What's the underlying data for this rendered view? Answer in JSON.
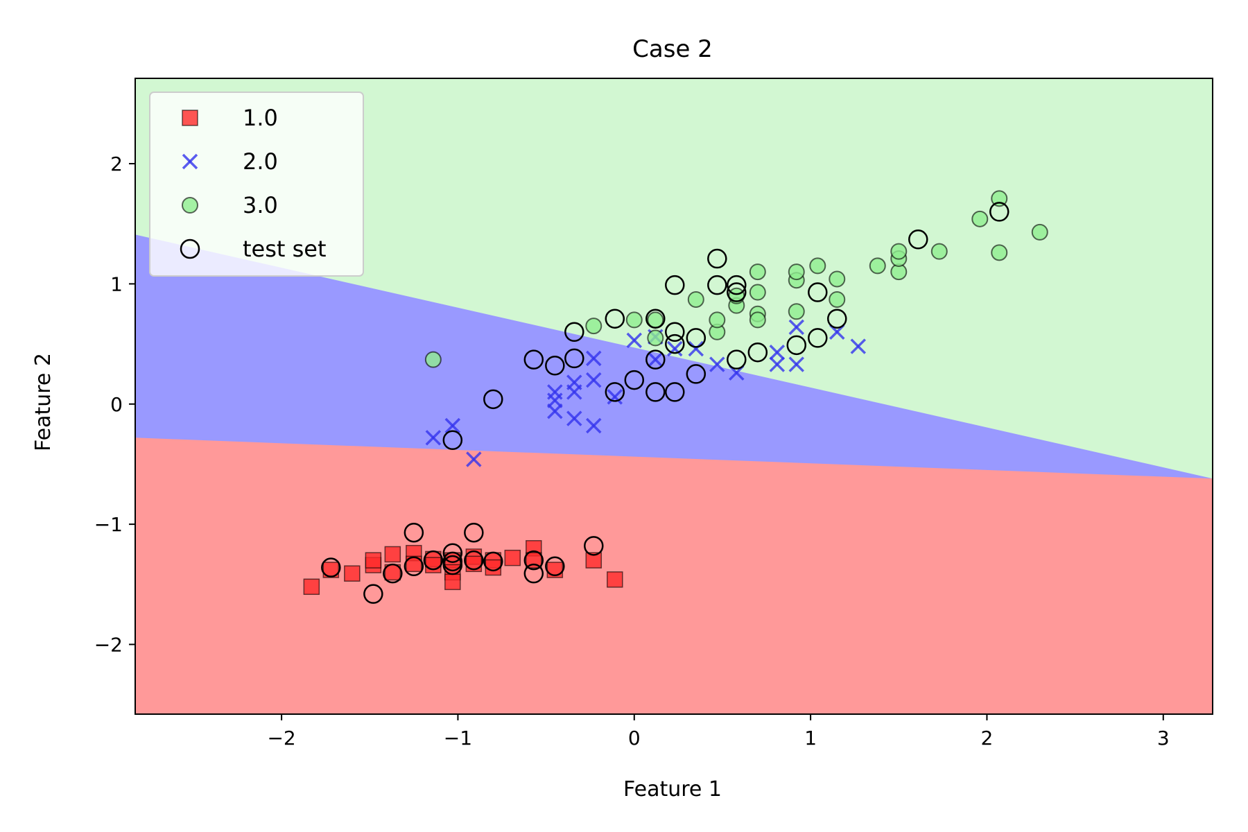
{
  "chart_data": {
    "type": "scatter",
    "title": "Case 2",
    "xlabel": "Feature 1",
    "ylabel": "Feature 2",
    "xlim": [
      -2.83,
      3.28
    ],
    "ylim": [
      -2.58,
      2.71
    ],
    "xticks": [
      -2,
      -1,
      0,
      1,
      2,
      3
    ],
    "xtick_labels": [
      "−2",
      "−1",
      "0",
      "1",
      "2",
      "3"
    ],
    "yticks": [
      -2,
      -1,
      0,
      1,
      2
    ],
    "ytick_labels": [
      "−2",
      "−1",
      "0",
      "1",
      "2"
    ],
    "legend_position": "top-left",
    "legend": [
      "1.0",
      "2.0",
      "3.0",
      "test set"
    ],
    "regions": [
      {
        "class": "1.0",
        "color": "#ff9999",
        "boundary_upper": [
          [
            -2.83,
            -0.28
          ],
          [
            3.28,
            -0.62
          ]
        ]
      },
      {
        "class": "2.0",
        "color": "#9999ff",
        "boundary_upper": [
          [
            -2.83,
            1.41
          ],
          [
            3.28,
            -0.62
          ]
        ]
      },
      {
        "class": "3.0",
        "color": "#d2f7d2"
      }
    ],
    "series": [
      {
        "name": "1.0",
        "marker": "square",
        "color": "#ff2a2a",
        "points": [
          [
            -1.83,
            -1.52
          ],
          [
            -1.72,
            -1.38
          ],
          [
            -1.6,
            -1.41
          ],
          [
            -1.48,
            -1.34
          ],
          [
            -1.48,
            -1.3
          ],
          [
            -1.37,
            -1.25
          ],
          [
            -1.37,
            -1.4
          ],
          [
            -1.25,
            -1.24
          ],
          [
            -1.25,
            -1.33
          ],
          [
            -1.14,
            -1.29
          ],
          [
            -1.14,
            -1.34
          ],
          [
            -1.03,
            -1.3
          ],
          [
            -1.03,
            -1.4
          ],
          [
            -1.03,
            -1.48
          ],
          [
            -0.91,
            -1.27
          ],
          [
            -0.91,
            -1.33
          ],
          [
            -0.8,
            -1.3
          ],
          [
            -0.8,
            -1.36
          ],
          [
            -0.69,
            -1.28
          ],
          [
            -0.57,
            -1.2
          ],
          [
            -0.57,
            -1.3
          ],
          [
            -0.45,
            -1.38
          ],
          [
            -0.23,
            -1.3
          ],
          [
            -0.11,
            -1.46
          ]
        ]
      },
      {
        "name": "2.0",
        "marker": "x",
        "color": "#3333ee",
        "points": [
          [
            -1.14,
            -0.28
          ],
          [
            -1.03,
            -0.18
          ],
          [
            -0.91,
            -0.46
          ],
          [
            -0.45,
            0.1
          ],
          [
            -0.45,
            0.03
          ],
          [
            -0.45,
            -0.06
          ],
          [
            -0.34,
            0.18
          ],
          [
            -0.34,
            0.1
          ],
          [
            -0.34,
            -0.12
          ],
          [
            -0.23,
            0.38
          ],
          [
            -0.23,
            0.2
          ],
          [
            -0.23,
            -0.18
          ],
          [
            -0.11,
            0.06
          ],
          [
            0.0,
            0.53
          ],
          [
            0.12,
            0.56
          ],
          [
            0.12,
            0.37
          ],
          [
            0.23,
            0.46
          ],
          [
            0.35,
            0.46
          ],
          [
            0.47,
            0.33
          ],
          [
            0.58,
            0.26
          ],
          [
            0.81,
            0.33
          ],
          [
            0.81,
            0.43
          ],
          [
            0.92,
            0.64
          ],
          [
            0.92,
            0.33
          ],
          [
            1.15,
            0.6
          ],
          [
            1.27,
            0.48
          ]
        ]
      },
      {
        "name": "3.0",
        "marker": "circle",
        "color": "#90ee90",
        "points": [
          [
            -1.14,
            0.37
          ],
          [
            -0.23,
            0.65
          ],
          [
            0.0,
            0.7
          ],
          [
            0.12,
            0.55
          ],
          [
            0.12,
            0.7
          ],
          [
            0.35,
            0.87
          ],
          [
            0.47,
            0.6
          ],
          [
            0.47,
            0.7
          ],
          [
            0.58,
            0.82
          ],
          [
            0.58,
            0.9
          ],
          [
            0.7,
            0.75
          ],
          [
            0.7,
            0.93
          ],
          [
            0.7,
            1.1
          ],
          [
            0.7,
            0.7
          ],
          [
            0.92,
            0.77
          ],
          [
            0.92,
            1.03
          ],
          [
            0.92,
            1.1
          ],
          [
            1.04,
            1.15
          ],
          [
            1.15,
            1.04
          ],
          [
            1.15,
            0.87
          ],
          [
            1.38,
            1.15
          ],
          [
            1.5,
            1.1
          ],
          [
            1.5,
            1.21
          ],
          [
            1.5,
            1.27
          ],
          [
            1.73,
            1.27
          ],
          [
            1.96,
            1.54
          ],
          [
            2.07,
            1.71
          ],
          [
            2.07,
            1.26
          ],
          [
            2.3,
            1.43
          ]
        ]
      }
    ],
    "test_set": [
      [
        -1.72,
        -1.36
      ],
      [
        -1.48,
        -1.58
      ],
      [
        -1.37,
        -1.41
      ],
      [
        -1.25,
        -1.07
      ],
      [
        -1.25,
        -1.35
      ],
      [
        -1.14,
        -1.3
      ],
      [
        -1.03,
        -1.24
      ],
      [
        -1.03,
        -1.34
      ],
      [
        -1.03,
        -1.31
      ],
      [
        -0.91,
        -1.07
      ],
      [
        -0.91,
        -1.3
      ],
      [
        -0.8,
        -1.31
      ],
      [
        -0.57,
        -1.3
      ],
      [
        -0.57,
        -1.41
      ],
      [
        -0.45,
        -1.35
      ],
      [
        -0.23,
        -1.18
      ],
      [
        -1.03,
        -0.3
      ],
      [
        -0.8,
        0.04
      ],
      [
        -0.57,
        0.37
      ],
      [
        -0.45,
        0.32
      ],
      [
        -0.34,
        0.38
      ],
      [
        -0.11,
        0.1
      ],
      [
        0.0,
        0.2
      ],
      [
        0.12,
        0.37
      ],
      [
        0.12,
        0.1
      ],
      [
        0.23,
        0.5
      ],
      [
        0.23,
        0.1
      ],
      [
        0.35,
        0.25
      ],
      [
        0.58,
        0.37
      ],
      [
        0.7,
        0.43
      ],
      [
        0.92,
        0.49
      ],
      [
        1.04,
        0.55
      ],
      [
        -0.34,
        0.6
      ],
      [
        -0.11,
        0.71
      ],
      [
        0.12,
        0.71
      ],
      [
        0.23,
        0.99
      ],
      [
        0.23,
        0.6
      ],
      [
        0.35,
        0.55
      ],
      [
        0.47,
        1.21
      ],
      [
        0.47,
        0.99
      ],
      [
        0.58,
        0.99
      ],
      [
        0.58,
        0.93
      ],
      [
        1.04,
        0.93
      ],
      [
        1.15,
        0.71
      ],
      [
        1.61,
        1.37
      ],
      [
        2.07,
        1.6
      ]
    ]
  }
}
